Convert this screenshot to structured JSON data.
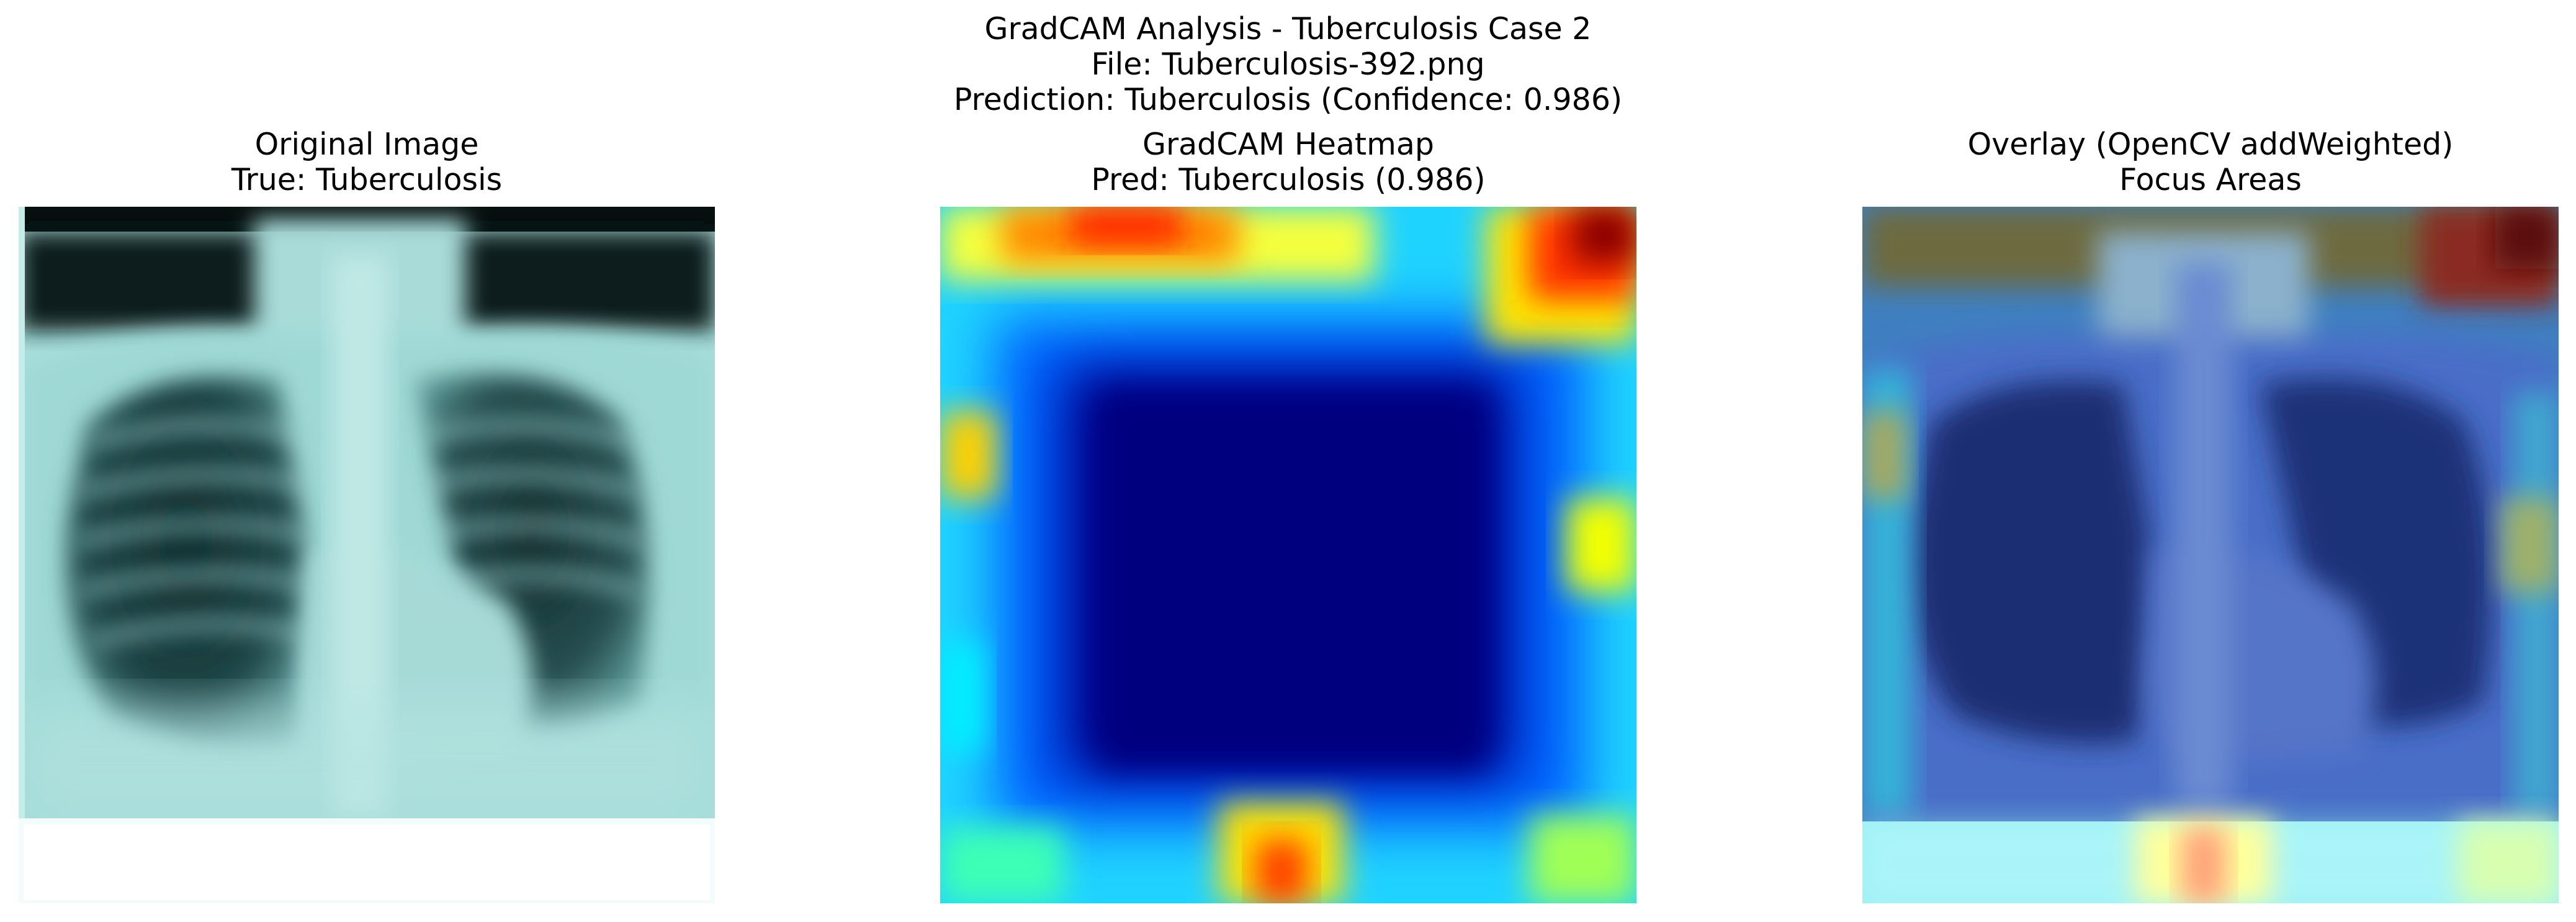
{
  "figure": {
    "suptitle_line1": "GradCAM Analysis - Tuberculosis Case 2",
    "suptitle_line2": "File: Tuberculosis-392.png",
    "suptitle_line3": "Prediction: Tuberculosis (Confidence: 0.986)"
  },
  "panels": [
    {
      "title_line1": "Original Image",
      "title_line2": "True: Tuberculosis",
      "content": "chest x-ray"
    },
    {
      "title_line1": "GradCAM Heatmap",
      "title_line2": "Pred: Tuberculosis (0.986)",
      "content": "jet colormap heatmap"
    },
    {
      "title_line1": "Overlay (OpenCV addWeighted)",
      "title_line2": "Focus Areas",
      "content": "x-ray with heatmap overlay"
    }
  ],
  "colors": {
    "xray_tint": "#9fdcd8",
    "heat_low": "#00007f",
    "heat_mid": "#00e5ff",
    "heat_high": "#800000"
  }
}
